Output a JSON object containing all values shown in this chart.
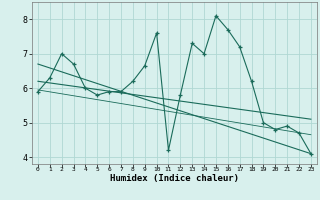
{
  "xlabel": "Humidex (Indice chaleur)",
  "x": [
    0,
    1,
    2,
    3,
    4,
    5,
    6,
    7,
    8,
    9,
    10,
    11,
    12,
    13,
    14,
    15,
    16,
    17,
    18,
    19,
    20,
    21,
    22,
    23
  ],
  "line1": [
    5.9,
    6.3,
    7.0,
    6.7,
    6.0,
    5.8,
    5.9,
    5.9,
    6.2,
    6.65,
    7.6,
    4.2,
    5.8,
    7.3,
    7.0,
    8.1,
    7.7,
    7.2,
    6.2,
    5.0,
    4.8,
    4.9,
    4.7,
    4.1
  ],
  "line2_x": [
    0,
    23
  ],
  "line2_y": [
    6.7,
    4.1
  ],
  "line3_x": [
    0,
    23
  ],
  "line3_y": [
    6.2,
    5.1
  ],
  "line4_x": [
    0,
    23
  ],
  "line4_y": [
    5.95,
    4.65
  ],
  "ylim": [
    3.8,
    8.5
  ],
  "xlim": [
    -0.5,
    23.5
  ],
  "yticks": [
    4,
    5,
    6,
    7,
    8
  ],
  "xticks": [
    0,
    1,
    2,
    3,
    4,
    5,
    6,
    7,
    8,
    9,
    10,
    11,
    12,
    13,
    14,
    15,
    16,
    17,
    18,
    19,
    20,
    21,
    22,
    23
  ],
  "line_color": "#1a6b5a",
  "bg_color": "#d8f0ed",
  "grid_color": "#b0d8d3"
}
